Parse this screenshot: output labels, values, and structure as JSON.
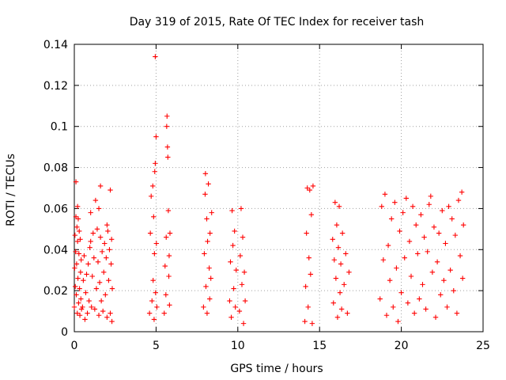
{
  "chart_data": {
    "type": "scatter",
    "title": "Day 319 of 2015, Rate Of TEC Index for receiver tash",
    "xlabel": "GPS time / hours",
    "ylabel": "ROTI / TECUs",
    "xlim": [
      0,
      25
    ],
    "ylim": [
      0,
      0.14
    ],
    "xticks": [
      0,
      5,
      10,
      15,
      20,
      25
    ],
    "yticks": [
      0,
      0.02,
      0.04,
      0.06,
      0.08,
      0.1,
      0.12,
      0.14
    ],
    "xtick_labels": [
      "0",
      "5",
      "10",
      "15",
      "20",
      "25"
    ],
    "ytick_labels": [
      "0",
      "0.02",
      "0.04",
      "0.06",
      "0.08",
      "0.1",
      "0.12",
      "0.14"
    ],
    "grid": true,
    "marker": "+",
    "series": [
      {
        "name": "ROTI",
        "color": "#ff0000",
        "points": [
          [
            0.0,
            0.012
          ],
          [
            0.02,
            0.031
          ],
          [
            0.04,
            0.047
          ],
          [
            0.06,
            0.022
          ],
          [
            0.08,
            0.039
          ],
          [
            0.1,
            0.073
          ],
          [
            0.1,
            0.056
          ],
          [
            0.12,
            0.018
          ],
          [
            0.14,
            0.033
          ],
          [
            0.16,
            0.051
          ],
          [
            0.18,
            0.009
          ],
          [
            0.2,
            0.061
          ],
          [
            0.2,
            0.044
          ],
          [
            0.22,
            0.026
          ],
          [
            0.24,
            0.055
          ],
          [
            0.26,
            0.014
          ],
          [
            0.28,
            0.038
          ],
          [
            0.3,
            0.049
          ],
          [
            0.32,
            0.021
          ],
          [
            0.34,
            0.008
          ],
          [
            0.36,
            0.045
          ],
          [
            0.38,
            0.029
          ],
          [
            0.4,
            0.016
          ],
          [
            0.42,
            0.035
          ],
          [
            0.44,
            0.011
          ],
          [
            0.5,
            0.012
          ],
          [
            0.55,
            0.025
          ],
          [
            0.6,
            0.037
          ],
          [
            0.65,
            0.006
          ],
          [
            0.7,
            0.019
          ],
          [
            0.75,
            0.028
          ],
          [
            0.8,
            0.009
          ],
          [
            0.85,
            0.033
          ],
          [
            0.9,
            0.015
          ],
          [
            0.95,
            0.041
          ],
          [
            1.0,
            0.044
          ],
          [
            1.0,
            0.058
          ],
          [
            1.05,
            0.012
          ],
          [
            1.1,
            0.027
          ],
          [
            1.15,
            0.048
          ],
          [
            1.2,
            0.036
          ],
          [
            1.25,
            0.011
          ],
          [
            1.3,
            0.064
          ],
          [
            1.35,
            0.021
          ],
          [
            1.4,
            0.05
          ],
          [
            1.45,
            0.034
          ],
          [
            1.5,
            0.008
          ],
          [
            1.5,
            0.06
          ],
          [
            1.55,
            0.024
          ],
          [
            1.6,
            0.046
          ],
          [
            1.6,
            0.071
          ],
          [
            1.65,
            0.015
          ],
          [
            1.7,
            0.039
          ],
          [
            1.75,
            0.01
          ],
          [
            1.8,
            0.029
          ],
          [
            1.85,
            0.043
          ],
          [
            1.9,
            0.018
          ],
          [
            1.95,
            0.036
          ],
          [
            2.0,
            0.007
          ],
          [
            2.0,
            0.052
          ],
          [
            2.05,
            0.049
          ],
          [
            2.1,
            0.025
          ],
          [
            2.15,
            0.04
          ],
          [
            2.2,
            0.009
          ],
          [
            2.2,
            0.069
          ],
          [
            2.25,
            0.033
          ],
          [
            2.28,
            0.045
          ],
          [
            2.3,
            0.005
          ],
          [
            2.32,
            0.021
          ],
          [
            4.6,
            0.009
          ],
          [
            4.65,
            0.048
          ],
          [
            4.7,
            0.066
          ],
          [
            4.75,
            0.015
          ],
          [
            4.8,
            0.071
          ],
          [
            4.82,
            0.025
          ],
          [
            4.85,
            0.056
          ],
          [
            4.88,
            0.006
          ],
          [
            4.9,
            0.038
          ],
          [
            4.92,
            0.078
          ],
          [
            4.95,
            0.082
          ],
          [
            4.97,
            0.019
          ],
          [
            5.0,
            0.095
          ],
          [
            5.02,
            0.043
          ],
          [
            5.05,
            0.012
          ],
          [
            4.95,
            0.134
          ],
          [
            5.5,
            0.009
          ],
          [
            5.55,
            0.032
          ],
          [
            5.6,
            0.018
          ],
          [
            5.62,
            0.046
          ],
          [
            5.65,
            0.1
          ],
          [
            5.67,
            0.105
          ],
          [
            5.7,
            0.09
          ],
          [
            5.72,
            0.085
          ],
          [
            5.75,
            0.059
          ],
          [
            5.78,
            0.027
          ],
          [
            5.8,
            0.037
          ],
          [
            5.82,
            0.013
          ],
          [
            5.85,
            0.048
          ],
          [
            7.9,
            0.012
          ],
          [
            7.95,
            0.038
          ],
          [
            8.0,
            0.067
          ],
          [
            8.02,
            0.077
          ],
          [
            8.05,
            0.022
          ],
          [
            8.1,
            0.055
          ],
          [
            8.12,
            0.009
          ],
          [
            8.15,
            0.044
          ],
          [
            8.2,
            0.072
          ],
          [
            8.25,
            0.031
          ],
          [
            8.28,
            0.016
          ],
          [
            8.3,
            0.048
          ],
          [
            8.35,
            0.026
          ],
          [
            8.4,
            0.058
          ],
          [
            9.5,
            0.015
          ],
          [
            9.55,
            0.034
          ],
          [
            9.6,
            0.007
          ],
          [
            9.65,
            0.059
          ],
          [
            9.7,
            0.042
          ],
          [
            9.75,
            0.021
          ],
          [
            9.8,
            0.049
          ],
          [
            9.85,
            0.012
          ],
          [
            9.9,
            0.03
          ],
          [
            10.1,
            0.01
          ],
          [
            10.15,
            0.037
          ],
          [
            10.2,
            0.06
          ],
          [
            10.25,
            0.023
          ],
          [
            10.3,
            0.046
          ],
          [
            10.35,
            0.004
          ],
          [
            10.4,
            0.029
          ],
          [
            10.45,
            0.015
          ],
          [
            14.1,
            0.005
          ],
          [
            14.15,
            0.022
          ],
          [
            14.2,
            0.048
          ],
          [
            14.25,
            0.07
          ],
          [
            14.3,
            0.012
          ],
          [
            14.35,
            0.036
          ],
          [
            14.4,
            0.069
          ],
          [
            14.45,
            0.028
          ],
          [
            14.5,
            0.057
          ],
          [
            14.55,
            0.004
          ],
          [
            14.6,
            0.071
          ],
          [
            15.8,
            0.045
          ],
          [
            15.85,
            0.014
          ],
          [
            15.9,
            0.035
          ],
          [
            15.95,
            0.063
          ],
          [
            16.0,
            0.026
          ],
          [
            16.05,
            0.052
          ],
          [
            16.1,
            0.007
          ],
          [
            16.15,
            0.041
          ],
          [
            16.2,
            0.061
          ],
          [
            16.25,
            0.019
          ],
          [
            16.3,
            0.033
          ],
          [
            16.35,
            0.011
          ],
          [
            16.4,
            0.048
          ],
          [
            16.5,
            0.023
          ],
          [
            16.6,
            0.038
          ],
          [
            16.7,
            0.009
          ],
          [
            16.8,
            0.029
          ],
          [
            18.7,
            0.016
          ],
          [
            18.8,
            0.061
          ],
          [
            18.9,
            0.035
          ],
          [
            19.0,
            0.067
          ],
          [
            19.1,
            0.008
          ],
          [
            19.2,
            0.042
          ],
          [
            19.3,
            0.025
          ],
          [
            19.4,
            0.055
          ],
          [
            19.5,
            0.012
          ],
          [
            19.6,
            0.063
          ],
          [
            19.7,
            0.031
          ],
          [
            19.8,
            0.005
          ],
          [
            19.9,
            0.049
          ],
          [
            20.0,
            0.019
          ],
          [
            20.1,
            0.058
          ],
          [
            20.2,
            0.036
          ],
          [
            20.3,
            0.065
          ],
          [
            20.4,
            0.014
          ],
          [
            20.5,
            0.044
          ],
          [
            20.6,
            0.027
          ],
          [
            20.7,
            0.061
          ],
          [
            20.8,
            0.009
          ],
          [
            20.9,
            0.052
          ],
          [
            21.0,
            0.038
          ],
          [
            21.1,
            0.016
          ],
          [
            21.2,
            0.057
          ],
          [
            21.3,
            0.023
          ],
          [
            21.4,
            0.046
          ],
          [
            21.5,
            0.011
          ],
          [
            21.6,
            0.039
          ],
          [
            21.7,
            0.062
          ],
          [
            21.8,
            0.066
          ],
          [
            21.9,
            0.029
          ],
          [
            22.0,
            0.051
          ],
          [
            22.1,
            0.007
          ],
          [
            22.2,
            0.034
          ],
          [
            22.3,
            0.048
          ],
          [
            22.4,
            0.018
          ],
          [
            22.5,
            0.059
          ],
          [
            22.6,
            0.025
          ],
          [
            22.7,
            0.043
          ],
          [
            22.8,
            0.012
          ],
          [
            22.9,
            0.061
          ],
          [
            23.0,
            0.03
          ],
          [
            23.1,
            0.055
          ],
          [
            23.2,
            0.02
          ],
          [
            23.3,
            0.047
          ],
          [
            23.4,
            0.009
          ],
          [
            23.5,
            0.064
          ],
          [
            23.6,
            0.037
          ],
          [
            23.7,
            0.068
          ],
          [
            23.75,
            0.026
          ],
          [
            23.8,
            0.052
          ]
        ]
      }
    ]
  }
}
